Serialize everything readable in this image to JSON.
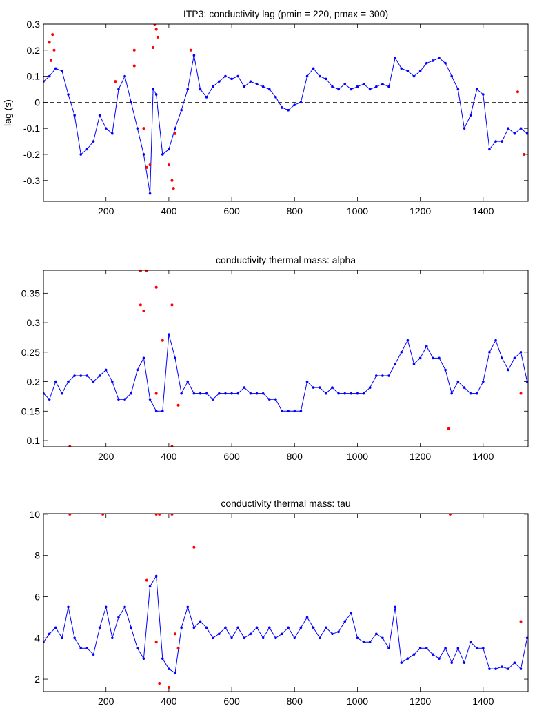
{
  "chart_data": [
    {
      "type": "line",
      "title": "ITP3: conductivity lag (pmin = 220, pmax = 300)",
      "xlabel": "",
      "ylabel": "lag (s)",
      "xlim": [
        1,
        1543
      ],
      "ylim": [
        -0.38,
        0.3
      ],
      "xticks": [
        200,
        400,
        600,
        800,
        1000,
        1200,
        1400
      ],
      "yticks": [
        -0.3,
        -0.2,
        -0.1,
        0,
        0.1,
        0.2,
        0.3
      ],
      "ytick_labels": [
        "-0.3",
        "-0.2",
        "-0.1",
        "0",
        "0.1",
        "0.2",
        "0.3"
      ],
      "reference_line": 0,
      "series": [
        {
          "name": "lag",
          "color": "#0000ff",
          "x": [
            1,
            20,
            40,
            60,
            80,
            100,
            120,
            140,
            160,
            180,
            200,
            220,
            240,
            260,
            280,
            300,
            320,
            340,
            350,
            360,
            380,
            400,
            420,
            440,
            460,
            480,
            500,
            520,
            540,
            560,
            580,
            600,
            620,
            640,
            660,
            680,
            700,
            720,
            740,
            760,
            780,
            800,
            820,
            840,
            860,
            880,
            900,
            920,
            940,
            960,
            980,
            1000,
            1020,
            1040,
            1060,
            1080,
            1100,
            1120,
            1140,
            1160,
            1180,
            1200,
            1220,
            1240,
            1260,
            1280,
            1300,
            1320,
            1340,
            1360,
            1380,
            1400,
            1420,
            1440,
            1460,
            1480,
            1500,
            1520,
            1540
          ],
          "y": [
            0.08,
            0.1,
            0.13,
            0.12,
            0.03,
            -0.05,
            -0.2,
            -0.18,
            -0.15,
            -0.05,
            -0.1,
            -0.12,
            0.05,
            0.1,
            0.0,
            -0.1,
            -0.2,
            -0.35,
            0.05,
            0.03,
            -0.2,
            -0.18,
            -0.1,
            -0.03,
            0.05,
            0.18,
            0.05,
            0.02,
            0.06,
            0.08,
            0.1,
            0.09,
            0.1,
            0.06,
            0.08,
            0.07,
            0.06,
            0.05,
            0.02,
            -0.02,
            -0.03,
            -0.01,
            0.0,
            0.1,
            0.13,
            0.1,
            0.09,
            0.06,
            0.05,
            0.07,
            0.05,
            0.06,
            0.07,
            0.05,
            0.06,
            0.07,
            0.06,
            0.17,
            0.13,
            0.12,
            0.1,
            0.12,
            0.15,
            0.16,
            0.17,
            0.15,
            0.1,
            0.05,
            -0.1,
            -0.05,
            0.05,
            0.03,
            -0.18,
            -0.15,
            -0.15,
            -0.1,
            -0.12,
            -0.1,
            -0.12
          ]
        },
        {
          "name": "outliers",
          "color": "#ff0000",
          "x": [
            20,
            30,
            35,
            25,
            230,
            290,
            290,
            320,
            330,
            340,
            350,
            355,
            360,
            365,
            400,
            410,
            415,
            420,
            470,
            1510,
            1530
          ],
          "y": [
            0.23,
            0.26,
            0.2,
            0.16,
            0.08,
            0.2,
            0.14,
            -0.1,
            -0.25,
            -0.24,
            0.21,
            0.3,
            0.28,
            0.25,
            -0.24,
            -0.3,
            -0.33,
            -0.12,
            0.2,
            0.04,
            -0.2
          ]
        }
      ]
    },
    {
      "type": "line",
      "title": "conductivity thermal mass: alpha",
      "xlabel": "",
      "ylabel": "",
      "xlim": [
        1,
        1543
      ],
      "ylim": [
        0.0895,
        0.389
      ],
      "xticks": [
        200,
        400,
        600,
        800,
        1000,
        1200,
        1400
      ],
      "yticks": [
        0.1,
        0.15,
        0.2,
        0.25,
        0.3,
        0.35
      ],
      "ytick_labels": [
        "0.1",
        "0.15",
        "0.2",
        "0.25",
        "0.3",
        "0.35"
      ],
      "series": [
        {
          "name": "alpha",
          "color": "#0000ff",
          "x": [
            1,
            20,
            40,
            60,
            80,
            100,
            120,
            140,
            160,
            180,
            200,
            220,
            240,
            260,
            280,
            300,
            320,
            340,
            360,
            380,
            400,
            420,
            440,
            460,
            480,
            500,
            520,
            540,
            560,
            580,
            600,
            620,
            640,
            660,
            680,
            700,
            720,
            740,
            760,
            780,
            800,
            820,
            840,
            860,
            880,
            900,
            920,
            940,
            960,
            980,
            1000,
            1020,
            1040,
            1060,
            1080,
            1100,
            1120,
            1140,
            1160,
            1180,
            1200,
            1220,
            1240,
            1260,
            1280,
            1300,
            1320,
            1340,
            1360,
            1380,
            1400,
            1420,
            1440,
            1460,
            1480,
            1500,
            1520,
            1540
          ],
          "y": [
            0.18,
            0.17,
            0.2,
            0.18,
            0.2,
            0.21,
            0.21,
            0.21,
            0.2,
            0.21,
            0.22,
            0.2,
            0.17,
            0.17,
            0.18,
            0.22,
            0.24,
            0.17,
            0.15,
            0.15,
            0.28,
            0.24,
            0.18,
            0.2,
            0.18,
            0.18,
            0.18,
            0.17,
            0.18,
            0.18,
            0.18,
            0.18,
            0.19,
            0.18,
            0.18,
            0.18,
            0.17,
            0.17,
            0.15,
            0.15,
            0.15,
            0.15,
            0.2,
            0.19,
            0.19,
            0.18,
            0.19,
            0.18,
            0.18,
            0.18,
            0.18,
            0.18,
            0.19,
            0.21,
            0.21,
            0.21,
            0.23,
            0.25,
            0.27,
            0.23,
            0.24,
            0.26,
            0.24,
            0.24,
            0.22,
            0.18,
            0.2,
            0.19,
            0.18,
            0.18,
            0.2,
            0.25,
            0.27,
            0.24,
            0.22,
            0.24,
            0.25,
            0.2
          ]
        },
        {
          "name": "outliers",
          "color": "#ff0000",
          "x": [
            85,
            310,
            330,
            310,
            320,
            360,
            380,
            360,
            410,
            410,
            430,
            1290,
            1520
          ],
          "y": [
            0.09,
            0.388,
            0.388,
            0.33,
            0.32,
            0.36,
            0.27,
            0.18,
            0.33,
            0.09,
            0.16,
            0.12,
            0.18
          ]
        }
      ]
    },
    {
      "type": "line",
      "title": "conductivity thermal mass: tau",
      "xlabel": "",
      "ylabel": "",
      "xlim": [
        1,
        1543
      ],
      "ylim": [
        1.4,
        10.03
      ],
      "xticks": [
        200,
        400,
        600,
        800,
        1000,
        1200,
        1400
      ],
      "yticks": [
        2,
        4,
        6,
        8,
        10
      ],
      "ytick_labels": [
        "2",
        "4",
        "6",
        "8",
        "10"
      ],
      "series": [
        {
          "name": "tau",
          "color": "#0000ff",
          "x": [
            1,
            20,
            40,
            60,
            80,
            100,
            120,
            140,
            160,
            180,
            200,
            220,
            240,
            260,
            280,
            300,
            320,
            340,
            360,
            380,
            400,
            420,
            440,
            460,
            480,
            500,
            520,
            540,
            560,
            580,
            600,
            620,
            640,
            660,
            680,
            700,
            720,
            740,
            760,
            780,
            800,
            820,
            840,
            860,
            880,
            900,
            920,
            940,
            960,
            980,
            1000,
            1020,
            1040,
            1060,
            1080,
            1100,
            1120,
            1140,
            1160,
            1180,
            1200,
            1220,
            1240,
            1260,
            1280,
            1300,
            1320,
            1340,
            1360,
            1380,
            1400,
            1420,
            1440,
            1460,
            1480,
            1500,
            1520,
            1540
          ],
          "y": [
            3.8,
            4.2,
            4.5,
            4.0,
            5.5,
            4.0,
            3.5,
            3.5,
            3.2,
            4.5,
            5.5,
            4.0,
            5.0,
            5.5,
            4.5,
            3.5,
            3.0,
            6.5,
            7.0,
            3.0,
            2.5,
            2.3,
            4.5,
            5.5,
            4.5,
            4.8,
            4.5,
            4.0,
            4.2,
            4.5,
            4.0,
            4.5,
            4.0,
            4.2,
            4.5,
            4.0,
            4.5,
            4.0,
            4.2,
            4.5,
            4.0,
            4.5,
            5.0,
            4.5,
            4.0,
            4.5,
            4.2,
            4.3,
            4.8,
            5.2,
            4.0,
            3.8,
            3.8,
            4.2,
            4.0,
            3.5,
            5.5,
            2.8,
            3.0,
            3.2,
            3.5,
            3.5,
            3.2,
            3.0,
            3.5,
            2.8,
            3.5,
            2.8,
            3.8,
            3.5,
            3.5,
            2.5,
            2.5,
            2.6,
            2.5,
            2.8,
            2.5,
            4.0
          ]
        },
        {
          "name": "outliers",
          "color": "#ff0000",
          "x": [
            85,
            190,
            360,
            370,
            410,
            1295,
            480,
            330,
            360,
            370,
            400,
            420,
            430,
            1520
          ],
          "y": [
            10,
            10,
            10,
            10,
            10,
            10,
            8.4,
            6.8,
            3.8,
            1.8,
            1.6,
            4.2,
            3.5,
            4.8
          ]
        }
      ]
    }
  ]
}
